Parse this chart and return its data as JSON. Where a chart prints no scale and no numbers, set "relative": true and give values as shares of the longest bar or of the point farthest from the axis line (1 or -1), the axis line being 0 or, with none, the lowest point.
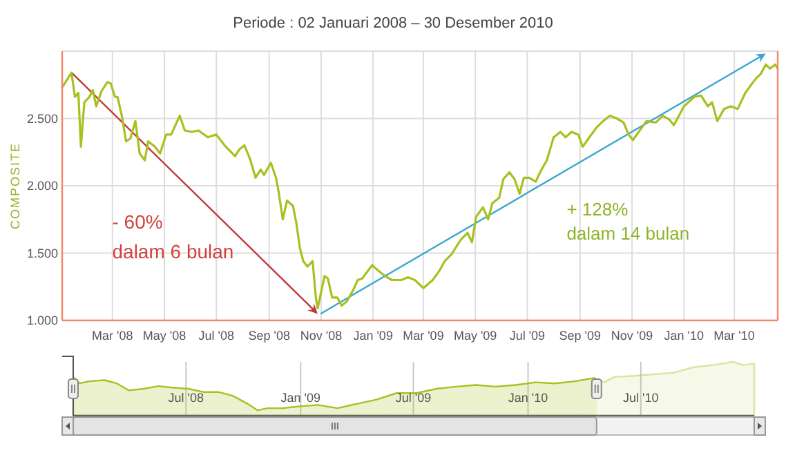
{
  "chart_data": [
    {
      "type": "line",
      "title": "Periode : 02 Januari 2008 – 30 Desember 2010",
      "ylabel": "COMPOSITE",
      "xlim": [
        "2008-01-02",
        "2010-04-21"
      ],
      "ylim": [
        1000,
        3000
      ],
      "yticks": [
        {
          "value": 1000,
          "label": "1.000"
        },
        {
          "value": 1500,
          "label": "1.500"
        },
        {
          "value": 2000,
          "label": "2.000"
        },
        {
          "value": 2500,
          "label": "2.500"
        },
        {
          "value": 3000,
          "label": null
        }
      ],
      "xticks": [
        {
          "value": "2008-03-01",
          "label": "Mar '08"
        },
        {
          "value": "2008-05-01",
          "label": "May '08"
        },
        {
          "value": "2008-07-01",
          "label": "Jul '08"
        },
        {
          "value": "2008-09-01",
          "label": "Sep '08"
        },
        {
          "value": "2008-11-01",
          "label": "Nov '08"
        },
        {
          "value": "2009-01-01",
          "label": "Jan '09"
        },
        {
          "value": "2009-03-01",
          "label": "Mar '09"
        },
        {
          "value": "2009-05-01",
          "label": "May '09"
        },
        {
          "value": "2009-07-01",
          "label": "Jul '09"
        },
        {
          "value": "2009-09-01",
          "label": "Sep '09"
        },
        {
          "value": "2009-11-01",
          "label": "Nov '09"
        },
        {
          "value": "2010-01-01",
          "label": "Jan '10"
        },
        {
          "value": "2010-03-01",
          "label": "Mar '10"
        }
      ],
      "grid": true,
      "annotations": [
        "- 60%",
        "dalam 6 bulan",
        "+ 128%",
        "dalam 14 bulan"
      ],
      "series": [
        {
          "color": "#a8c020",
          "x": [
            "2008-01-02",
            "2008-01-13",
            "2008-01-17",
            "2008-01-21",
            "2008-01-24",
            "2008-01-28",
            "2008-02-03",
            "2008-02-07",
            "2008-02-11",
            "2008-02-17",
            "2008-02-24",
            "2008-02-28",
            "2008-03-04",
            "2008-03-07",
            "2008-03-12",
            "2008-03-17",
            "2008-03-22",
            "2008-03-28",
            "2008-04-02",
            "2008-04-08",
            "2008-04-12",
            "2008-04-20",
            "2008-04-26",
            "2008-05-03",
            "2008-05-09",
            "2008-05-19",
            "2008-05-25",
            "2008-06-02",
            "2008-06-10",
            "2008-06-21",
            "2008-07-01",
            "2008-07-12",
            "2008-07-23",
            "2008-07-28",
            "2008-08-03",
            "2008-08-10",
            "2008-08-16",
            "2008-08-22",
            "2008-08-26",
            "2008-09-03",
            "2008-09-09",
            "2008-09-12",
            "2008-09-17",
            "2008-09-22",
            "2008-09-29",
            "2008-10-03",
            "2008-10-07",
            "2008-10-11",
            "2008-10-16",
            "2008-10-22",
            "2008-10-26",
            "2008-10-28",
            "2008-11-01",
            "2008-11-05",
            "2008-11-09",
            "2008-11-14",
            "2008-11-20",
            "2008-11-25",
            "2008-12-01",
            "2008-12-09",
            "2008-12-14",
            "2008-12-19",
            "2008-12-31",
            "2009-01-07",
            "2009-01-15",
            "2009-01-23",
            "2009-02-03",
            "2009-02-11",
            "2009-02-19",
            "2009-03-01",
            "2009-03-12",
            "2009-03-20",
            "2009-03-26",
            "2009-04-03",
            "2009-04-14",
            "2009-04-22",
            "2009-04-27",
            "2009-05-02",
            "2009-05-10",
            "2009-05-16",
            "2009-05-21",
            "2009-05-29",
            "2009-06-03",
            "2009-06-10",
            "2009-06-16",
            "2009-06-22",
            "2009-06-27",
            "2009-07-03",
            "2009-07-11",
            "2009-07-16",
            "2009-07-24",
            "2009-08-01",
            "2009-08-09",
            "2009-08-15",
            "2009-08-22",
            "2009-08-30",
            "2009-09-04",
            "2009-09-12",
            "2009-09-20",
            "2009-09-28",
            "2009-10-06",
            "2009-10-14",
            "2009-10-22",
            "2009-10-28",
            "2009-11-02",
            "2009-11-10",
            "2009-11-18",
            "2009-11-29",
            "2009-12-07",
            "2009-12-15",
            "2009-12-20",
            "2010-01-01",
            "2010-01-13",
            "2010-01-21",
            "2010-01-29",
            "2010-02-03",
            "2010-02-09",
            "2010-02-17",
            "2010-02-25",
            "2010-03-05",
            "2010-03-14",
            "2010-03-22",
            "2010-03-27",
            "2010-04-01",
            "2010-04-07",
            "2010-04-12",
            "2010-04-18",
            "2010-04-21"
          ],
          "values": [
            2730,
            2840,
            2660,
            2690,
            2290,
            2620,
            2660,
            2710,
            2590,
            2700,
            2770,
            2760,
            2660,
            2660,
            2520,
            2330,
            2350,
            2480,
            2240,
            2190,
            2330,
            2290,
            2240,
            2380,
            2380,
            2520,
            2410,
            2400,
            2410,
            2360,
            2380,
            2290,
            2220,
            2270,
            2300,
            2190,
            2060,
            2120,
            2080,
            2170,
            2060,
            1960,
            1750,
            1890,
            1850,
            1720,
            1540,
            1440,
            1400,
            1440,
            1160,
            1090,
            1210,
            1330,
            1310,
            1170,
            1170,
            1110,
            1140,
            1230,
            1300,
            1310,
            1410,
            1370,
            1330,
            1300,
            1300,
            1320,
            1300,
            1240,
            1300,
            1370,
            1440,
            1490,
            1600,
            1650,
            1580,
            1770,
            1840,
            1750,
            1870,
            1910,
            2050,
            2100,
            2050,
            1940,
            2060,
            2060,
            2030,
            2100,
            2190,
            2360,
            2400,
            2360,
            2400,
            2380,
            2290,
            2360,
            2430,
            2480,
            2520,
            2500,
            2470,
            2380,
            2340,
            2410,
            2480,
            2470,
            2520,
            2490,
            2450,
            2590,
            2660,
            2670,
            2590,
            2620,
            2480,
            2570,
            2590,
            2570,
            2690,
            2760,
            2800,
            2830,
            2900,
            2870,
            2900,
            2870
          ]
        }
      ]
    },
    {
      "type": "area",
      "relative": true,
      "tick_labels": "x",
      "grid": "x",
      "xlim": [
        "2008-01-02",
        "2010-12-30"
      ],
      "xticks": [
        {
          "value": "2008-07-01",
          "label": "Jul '08"
        },
        {
          "value": "2009-01-01",
          "label": "Jan '09"
        },
        {
          "value": "2009-07-01",
          "label": "Jul '09"
        },
        {
          "value": "2010-01-01",
          "label": "Jan '10"
        },
        {
          "value": "2010-07-01",
          "label": "Jul '10"
        }
      ],
      "series": [
        {
          "color": "#a8c020",
          "x": [
            "2008-01-02",
            "2008-01-12",
            "2008-01-28",
            "2008-02-21",
            "2008-03-12",
            "2008-03-31",
            "2008-04-24",
            "2008-05-18",
            "2008-06-11",
            "2008-07-05",
            "2008-07-29",
            "2008-08-22",
            "2008-09-14",
            "2008-10-08",
            "2008-10-24",
            "2008-11-09",
            "2008-12-03",
            "2008-12-27",
            "2009-01-29",
            "2009-03-01",
            "2009-04-01",
            "2009-05-03",
            "2009-06-04",
            "2009-07-06",
            "2009-08-07",
            "2009-09-08",
            "2009-10-09",
            "2009-11-10",
            "2009-12-12",
            "2010-01-13",
            "2010-02-13",
            "2010-03-17",
            "2010-04-17",
            "2010-05-03",
            "2010-05-19",
            "2010-06-20",
            "2010-07-22",
            "2010-08-23",
            "2010-09-23",
            "2010-10-25",
            "2010-11-26",
            "2010-12-12",
            "2010-12-30"
          ],
          "values": [
            0.72,
            0.6,
            0.64,
            0.66,
            0.6,
            0.47,
            0.5,
            0.55,
            0.52,
            0.5,
            0.44,
            0.44,
            0.37,
            0.22,
            0.1,
            0.14,
            0.14,
            0.17,
            0.2,
            0.14,
            0.22,
            0.3,
            0.42,
            0.42,
            0.5,
            0.54,
            0.57,
            0.54,
            0.57,
            0.62,
            0.6,
            0.64,
            0.7,
            0.62,
            0.72,
            0.74,
            0.77,
            0.8,
            0.9,
            0.94,
            1.0,
            0.94,
            0.97
          ]
        }
      ]
    }
  ]
}
